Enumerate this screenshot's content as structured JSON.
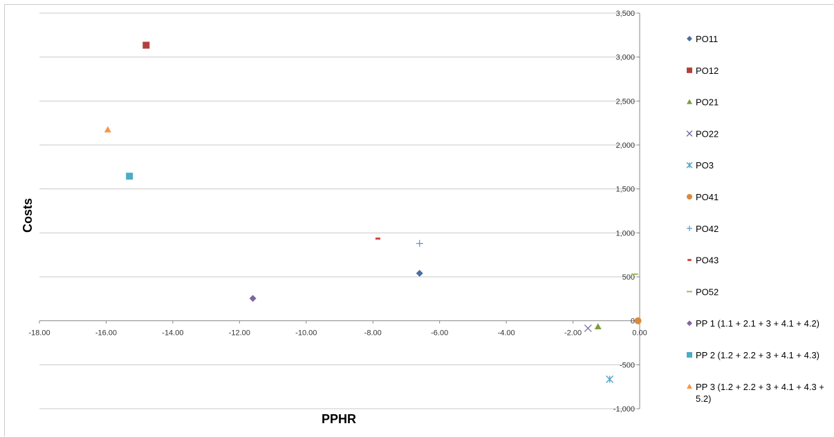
{
  "chart_data": {
    "type": "scatter",
    "xlabel": "PPHR",
    "ylabel": "Costs",
    "xlim": [
      -18,
      0
    ],
    "ylim": [
      -1000,
      3500
    ],
    "grid": "horizontal",
    "legend_position": "right",
    "x_ticks": [
      "-18.00",
      "-16.00",
      "-14.00",
      "-12.00",
      "-10.00",
      "-8.00",
      "-6.00",
      "-4.00",
      "-2.00",
      "0.00"
    ],
    "y_ticks": [
      "3,500",
      "3,000",
      "2,500",
      "2,000",
      "1,500",
      "1,000",
      "500",
      "0",
      "-500",
      "-1,000"
    ],
    "series": [
      {
        "name": "PO11",
        "marker": "diamond",
        "color": "#4A6FA5",
        "x": [
          -6.6
        ],
        "y": [
          540
        ]
      },
      {
        "name": "PO12",
        "marker": "square",
        "color": "#B2403C",
        "x": [
          -14.8
        ],
        "y": [
          3135
        ]
      },
      {
        "name": "PO21",
        "marker": "triangle",
        "color": "#7E9C43",
        "x": [
          -1.25
        ],
        "y": [
          -65
        ]
      },
      {
        "name": "PO22",
        "marker": "x",
        "color": "#6C5B9A",
        "x": [
          -1.55
        ],
        "y": [
          -85
        ]
      },
      {
        "name": "PO3",
        "marker": "asterisk",
        "color": "#4FA5C4",
        "x": [
          -0.9
        ],
        "y": [
          -665
        ]
      },
      {
        "name": "PO41",
        "marker": "circle",
        "color": "#D98A3C",
        "x": [
          -0.05
        ],
        "y": [
          0
        ]
      },
      {
        "name": "PO42",
        "marker": "plus",
        "color": "#5B8FD0",
        "x": [
          -6.6
        ],
        "y": [
          880
        ]
      },
      {
        "name": "PO43",
        "marker": "dash",
        "color": "#D2453F",
        "x": [
          -7.85
        ],
        "y": [
          935
        ]
      },
      {
        "name": "PO52",
        "marker": "hline",
        "color": "#9BBB59",
        "x": [
          -0.15
        ],
        "y": [
          530
        ]
      },
      {
        "name": "PP 1 (1.1 + 2.1 + 3 + 4.1 + 4.2)",
        "marker": "diamond",
        "color": "#8064A2",
        "x": [
          -11.6
        ],
        "y": [
          255
        ]
      },
      {
        "name": "PP 2 (1.2 + 2.2 + 3 + 4.1 + 4.3)",
        "marker": "square",
        "color": "#4BACC6",
        "x": [
          -15.3
        ],
        "y": [
          1645
        ]
      },
      {
        "name": "PP 3 (1.2 + 2.2 + 3 + 4.1 + 4.3 + 5.2)",
        "marker": "triangle",
        "color": "#F79646",
        "x": [
          -15.95
        ],
        "y": [
          2175
        ]
      }
    ]
  }
}
